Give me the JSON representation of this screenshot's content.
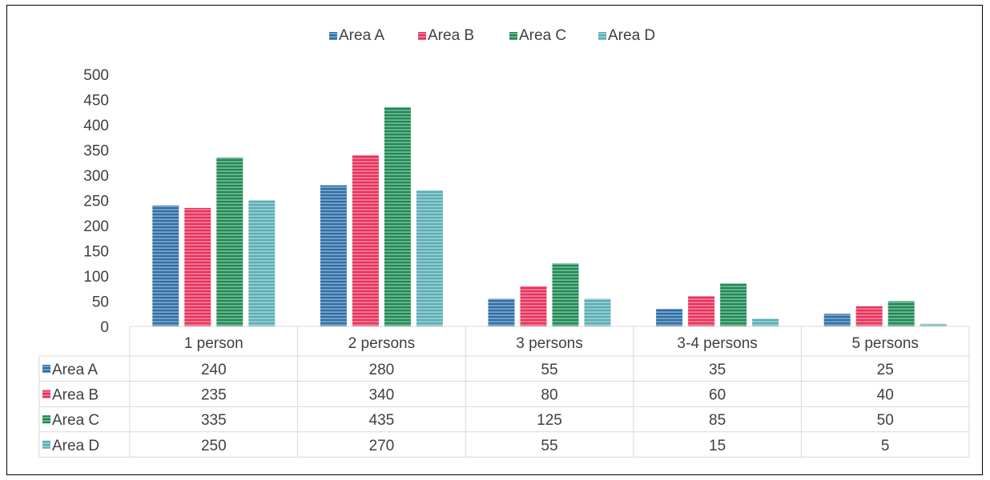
{
  "chart_data": {
    "type": "bar",
    "title": "",
    "xlabel": "",
    "ylabel": "",
    "ylim": [
      0,
      500
    ],
    "yticks": [
      "0",
      "50",
      "100",
      "150",
      "200",
      "250",
      "300",
      "350",
      "400",
      "450",
      "500"
    ],
    "grid": false,
    "legend_position": "top",
    "data_table": true,
    "categories": [
      "1 person",
      "2 persons",
      "3 persons",
      "3-4 persons",
      "5 persons"
    ],
    "series": [
      {
        "name": "Area A",
        "color": "#2e6fa7",
        "values": [
          240,
          280,
          55,
          35,
          25
        ]
      },
      {
        "name": "Area B",
        "color": "#e8315b",
        "values": [
          235,
          340,
          80,
          60,
          40
        ]
      },
      {
        "name": "Area C",
        "color": "#1e8a55",
        "values": [
          335,
          435,
          125,
          85,
          50
        ]
      },
      {
        "name": "Area D",
        "color": "#5aaeb5",
        "values": [
          250,
          270,
          55,
          15,
          5
        ]
      }
    ]
  }
}
